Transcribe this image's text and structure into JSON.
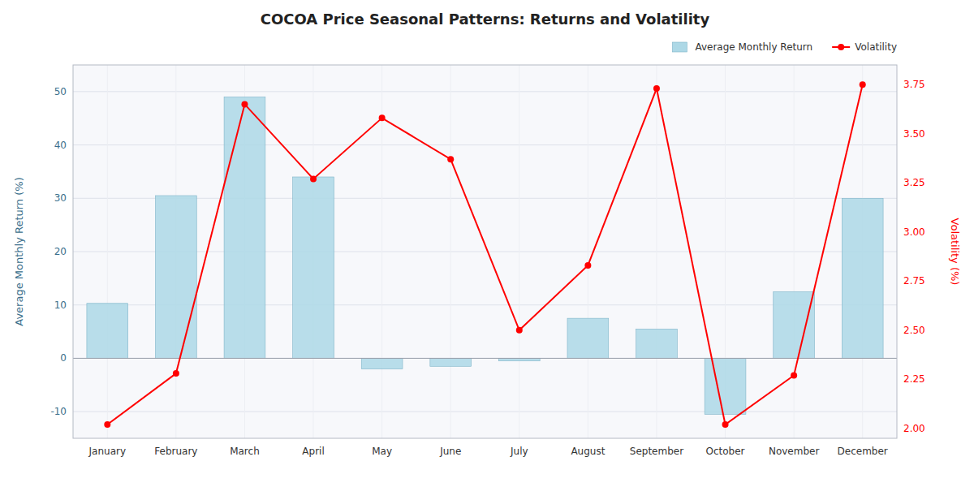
{
  "chart_data": {
    "type": "bar",
    "title": "COCOA Price Seasonal Patterns: Returns and Volatility",
    "categories": [
      "January",
      "February",
      "March",
      "April",
      "May",
      "June",
      "July",
      "August",
      "September",
      "October",
      "November",
      "December"
    ],
    "ylabel": "Average Monthly Return (%)",
    "y2label": "Volatility (%)",
    "series": [
      {
        "name": "Average Monthly Return",
        "type": "bar",
        "color": "#add8e6",
        "values": [
          10.3,
          30.5,
          49.0,
          34.0,
          -2.0,
          -1.5,
          -0.5,
          7.5,
          5.5,
          -10.5,
          12.5,
          30.0
        ]
      },
      {
        "name": "Volatility",
        "type": "line",
        "color": "red",
        "marker": "circle",
        "line_style": "solid",
        "axis": "y2",
        "values": [
          2.02,
          2.28,
          3.65,
          3.27,
          3.58,
          3.37,
          2.5,
          2.83,
          3.73,
          2.02,
          2.27,
          3.75
        ]
      }
    ],
    "ylim": [
      -15,
      55
    ],
    "yticks": [
      -10,
      0,
      10,
      20,
      30,
      40,
      50
    ],
    "y2lim": [
      1.95,
      3.85
    ],
    "y2ticks": [
      {
        "value": 2.0,
        "label": "2.00"
      },
      2.25,
      {
        "value": 2.5,
        "label": "2.50"
      },
      2.75,
      {
        "value": 3.0,
        "label": "3.00"
      },
      3.25,
      {
        "value": 3.5,
        "label": "3.50"
      },
      3.75
    ],
    "grid": true,
    "legend": "upper right"
  }
}
